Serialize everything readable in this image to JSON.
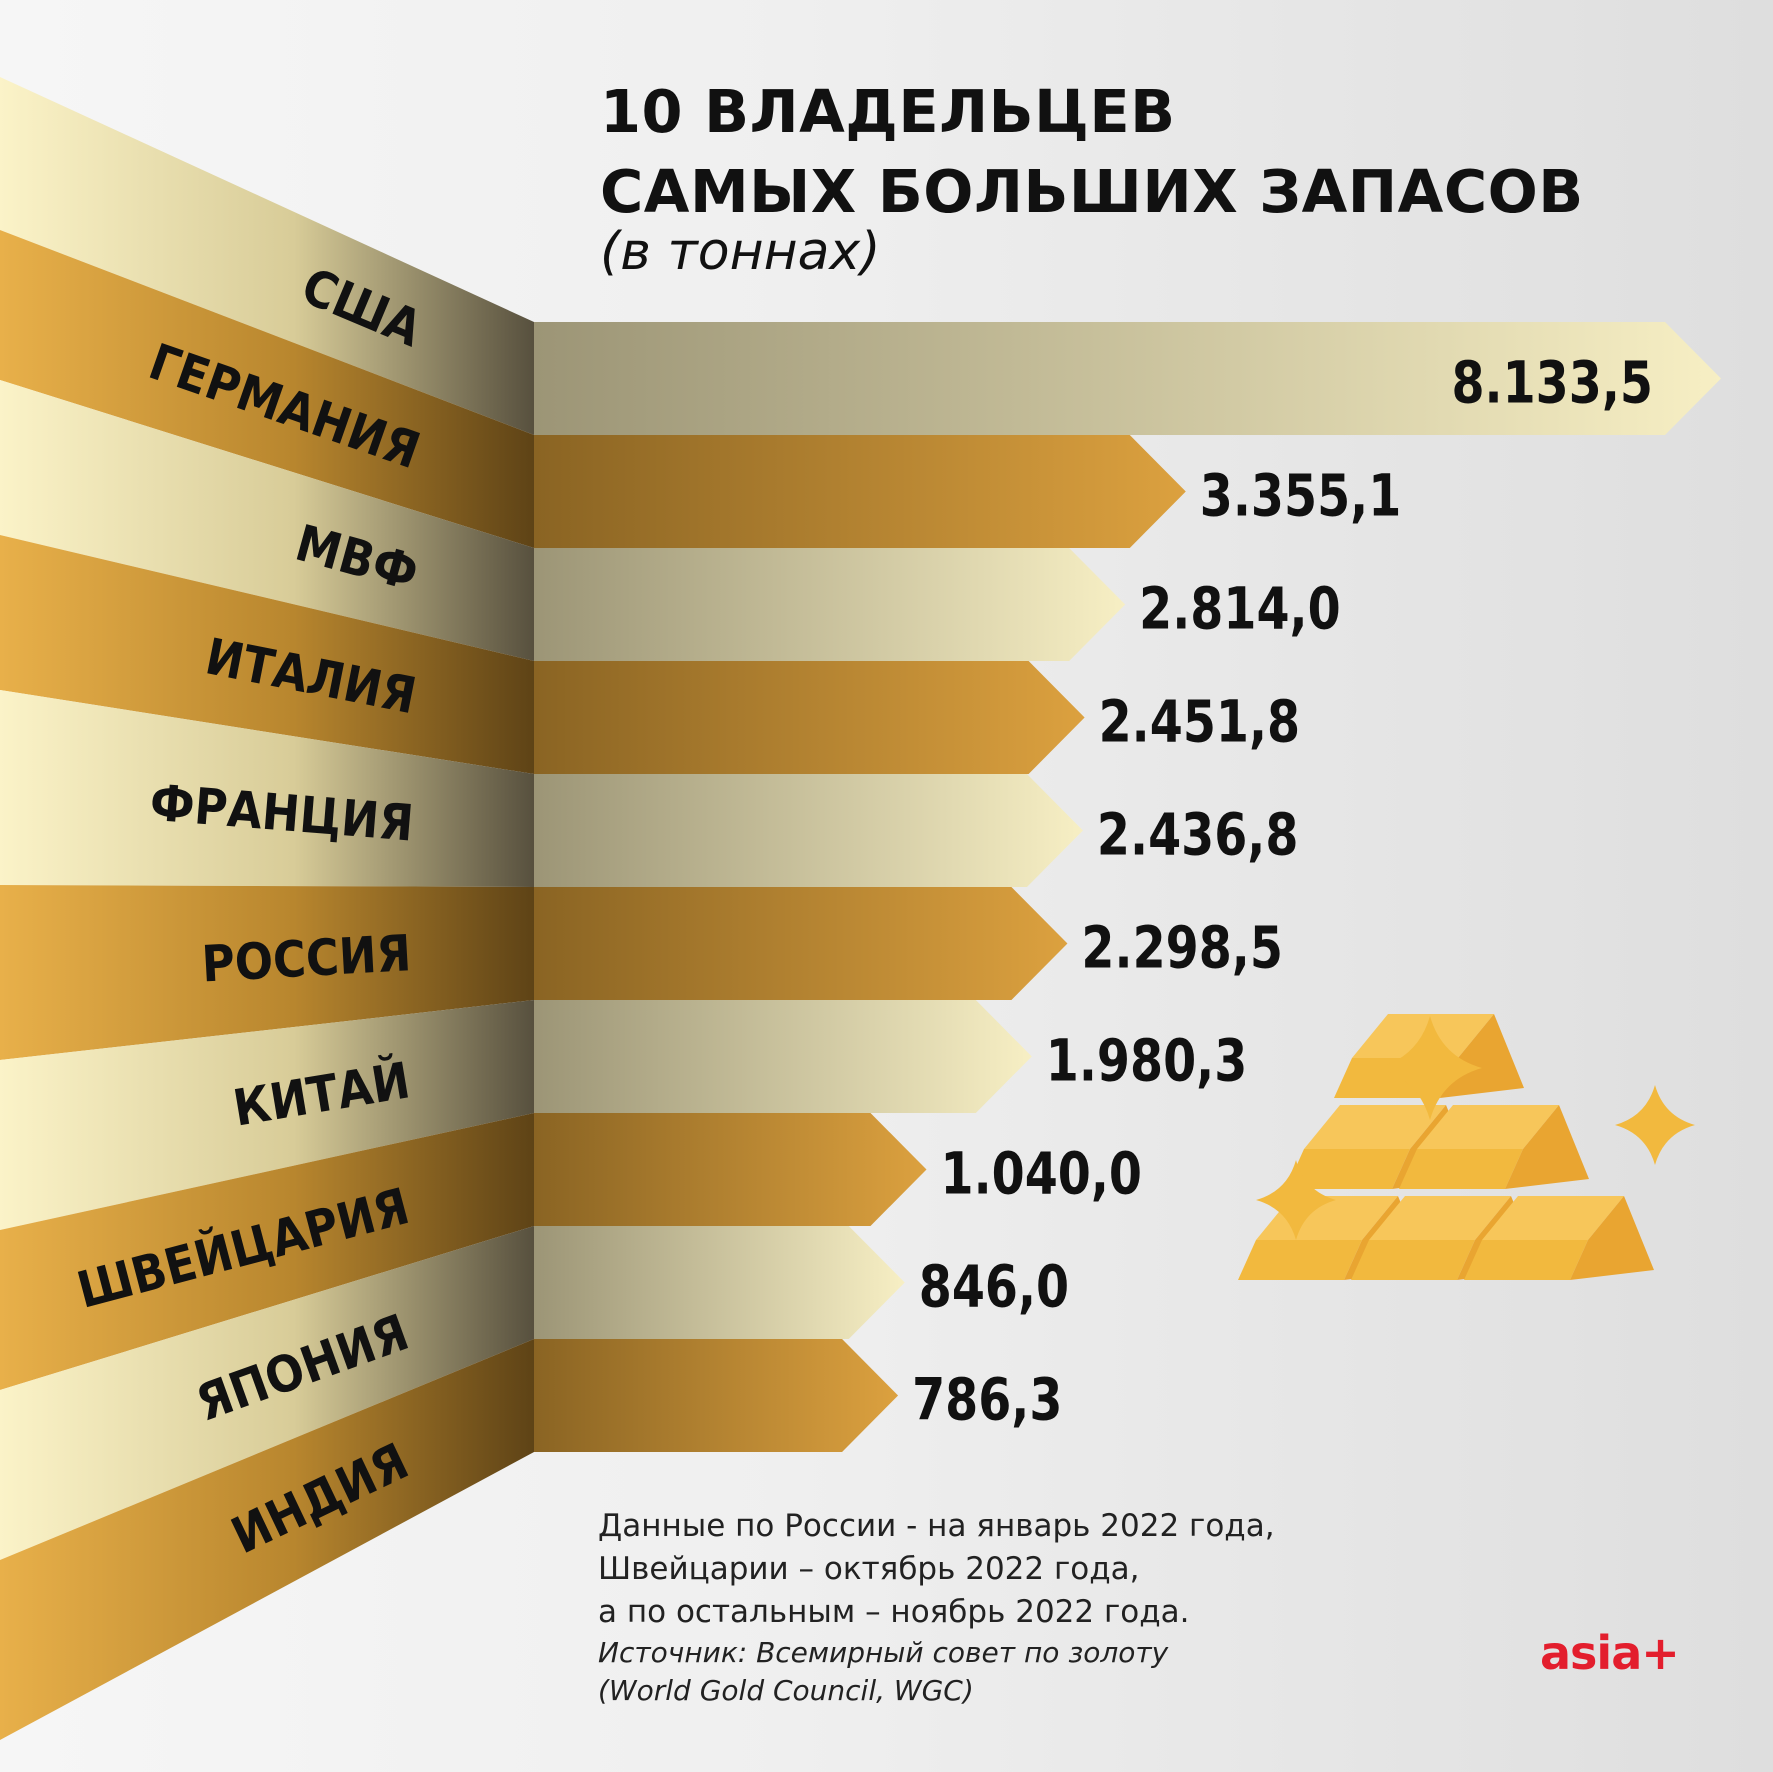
{
  "header": {
    "title_line1": "10 ВЛАДЕЛЬЦЕВ",
    "title_line2": "САМЫХ БОЛЬШИХ ЗАПАСОВ",
    "subtitle": "(в тоннах)"
  },
  "chart_data": {
    "type": "bar",
    "orientation": "horizontal",
    "title": "10 ВЛАДЕЛЬЦЕВ САМЫХ БОЛЬШИХ ЗАПАСОВ",
    "subtitle": "(в тоннах)",
    "categories": [
      "США",
      "ГЕРМАНИЯ",
      "МВФ",
      "ИТАЛИЯ",
      "ФРАНЦИЯ",
      "РОССИЯ",
      "КИТАЙ",
      "ШВЕЙЦАРИЯ",
      "ЯПОНИЯ",
      "ИНДИЯ"
    ],
    "values": [
      8133.5,
      3355.1,
      2814.0,
      2451.8,
      2436.8,
      2298.5,
      1980.3,
      1040.0,
      846.0,
      786.3
    ],
    "value_labels": [
      "8.133,5",
      "3.355,1",
      "2.814,0",
      "2.451,8",
      "2.436,8",
      "2.298,5",
      "1.980,3",
      "1.040,0",
      "846,0",
      "786,3"
    ],
    "legend": false,
    "grid": false
  },
  "footnote": {
    "line1": "Данные по России - на январь 2022 года,",
    "line2": "Швейцарии – октябрь 2022 года,",
    "line3": "а по остальным – ноябрь 2022 года.",
    "source1": "Источник: Всемирный совет по золоту",
    "source2": "(World Gold Council, WGC)"
  },
  "branding": {
    "logo": "asia+"
  },
  "colors": {
    "gold_dark": "#b8862e",
    "gold_light": "#f7efc4",
    "logo_red": "#e31e2d",
    "background": "#ededed"
  },
  "decoration": {
    "icon": "gold-bars-icon",
    "sparkle": "sparkle-icon"
  }
}
